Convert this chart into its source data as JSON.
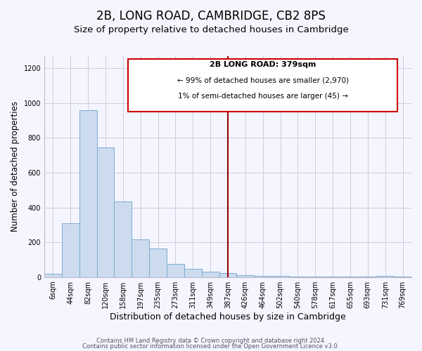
{
  "title": "2B, LONG ROAD, CAMBRIDGE, CB2 8PS",
  "subtitle": "Size of property relative to detached houses in Cambridge",
  "xlabel": "Distribution of detached houses by size in Cambridge",
  "ylabel": "Number of detached properties",
  "bar_labels": [
    "6sqm",
    "44sqm",
    "82sqm",
    "120sqm",
    "158sqm",
    "197sqm",
    "235sqm",
    "273sqm",
    "311sqm",
    "349sqm",
    "387sqm",
    "426sqm",
    "464sqm",
    "502sqm",
    "540sqm",
    "578sqm",
    "617sqm",
    "655sqm",
    "693sqm",
    "731sqm",
    "769sqm"
  ],
  "bar_values": [
    20,
    310,
    960,
    745,
    435,
    215,
    165,
    75,
    47,
    33,
    25,
    12,
    8,
    5,
    3,
    2,
    1,
    1,
    1,
    8,
    1
  ],
  "bar_color": "#ccdcee",
  "bar_edge_color": "#7aabcf",
  "vline_x_index": 10,
  "vline_color": "#990000",
  "annotation_title": "2B LONG ROAD: 379sqm",
  "annotation_line1": "← 99% of detached houses are smaller (2,970)",
  "annotation_line2": "1% of semi-detached houses are larger (45) →",
  "annotation_box_color": "white",
  "annotation_box_edge_color": "#cc0000",
  "footer1": "Contains HM Land Registry data © Crown copyright and database right 2024.",
  "footer2": "Contains public sector information licensed under the Open Government Licence v3.0.",
  "ylim": [
    0,
    1270
  ],
  "yticks": [
    0,
    200,
    400,
    600,
    800,
    1000,
    1200
  ],
  "bg_color": "#f5f5ff",
  "title_fontsize": 12,
  "subtitle_fontsize": 9.5,
  "xlabel_fontsize": 9,
  "ylabel_fontsize": 8.5,
  "tick_fontsize": 7,
  "footer_fontsize": 6
}
